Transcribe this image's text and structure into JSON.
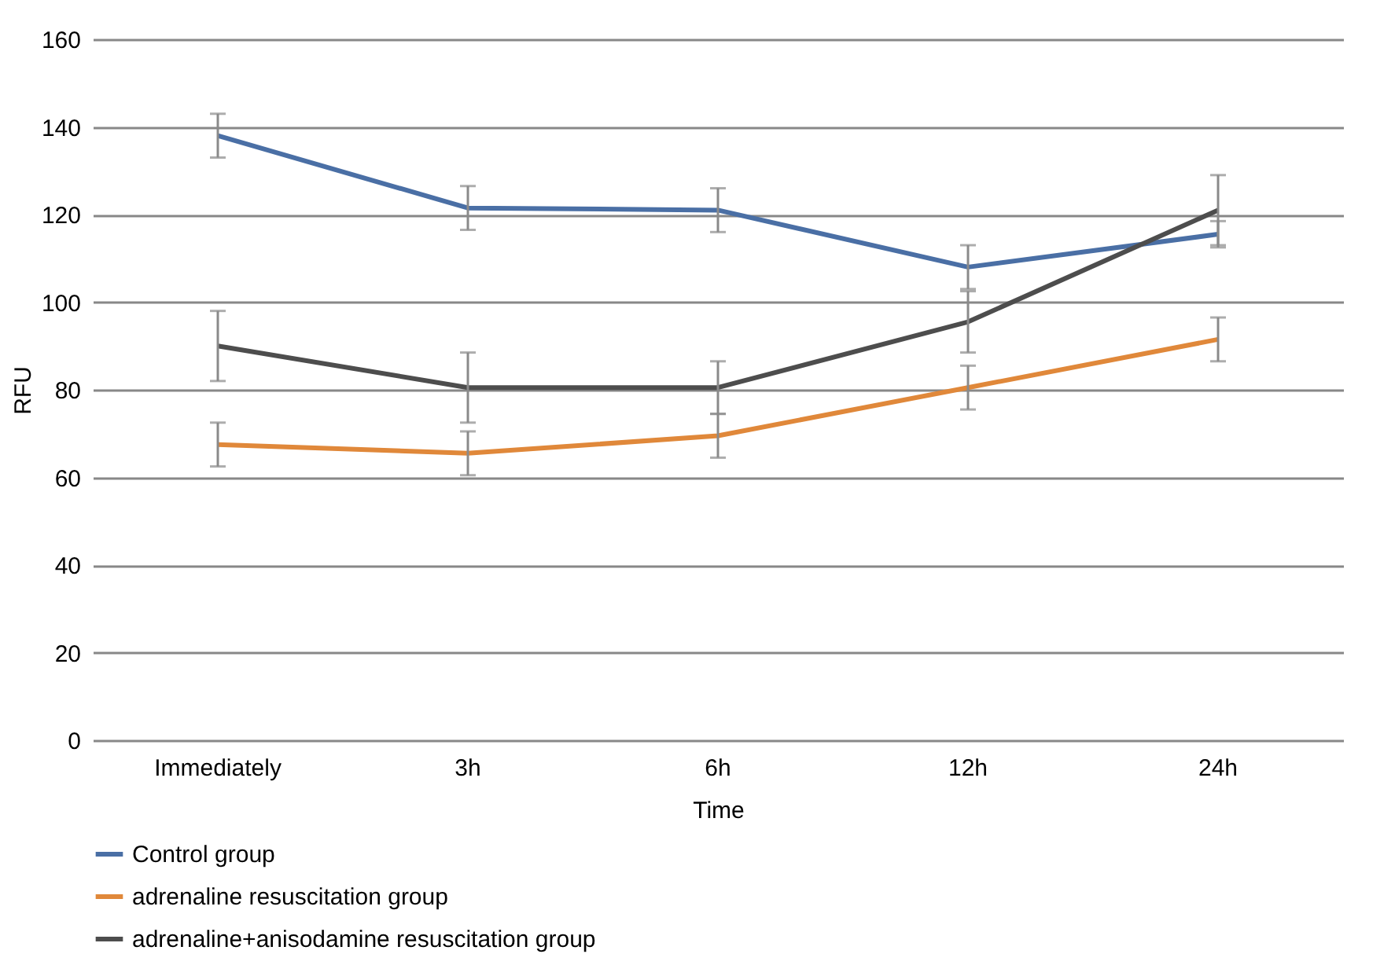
{
  "chart_data": {
    "type": "line",
    "xlabel": "Time",
    "ylabel": "RFU",
    "categories": [
      "Immediately",
      "3h",
      "6h",
      "12h",
      "24h"
    ],
    "ylim": [
      0,
      160
    ],
    "yticks": [
      0,
      20,
      40,
      60,
      80,
      100,
      120,
      140,
      160
    ],
    "grid": "y",
    "legend": "bottom",
    "marker": "none",
    "series": [
      {
        "name": "Control group",
        "color": "#4a6fa5",
        "values": [
          138,
          121.5,
          121,
          108,
          115.5
        ],
        "errors": [
          5,
          5,
          5,
          5,
          3
        ]
      },
      {
        "name": "adrenaline resuscitation group",
        "color": "#e0883a",
        "values": [
          67.5,
          65.5,
          69.5,
          80.5,
          91.5
        ],
        "errors": [
          5,
          5,
          5,
          5,
          5
        ]
      },
      {
        "name": "adrenaline+anisodamine resuscitation group",
        "color": "#4d4d4d",
        "values": [
          90,
          80.5,
          80.5,
          95.5,
          121
        ],
        "errors": [
          8,
          8,
          6,
          7,
          8
        ]
      }
    ]
  }
}
